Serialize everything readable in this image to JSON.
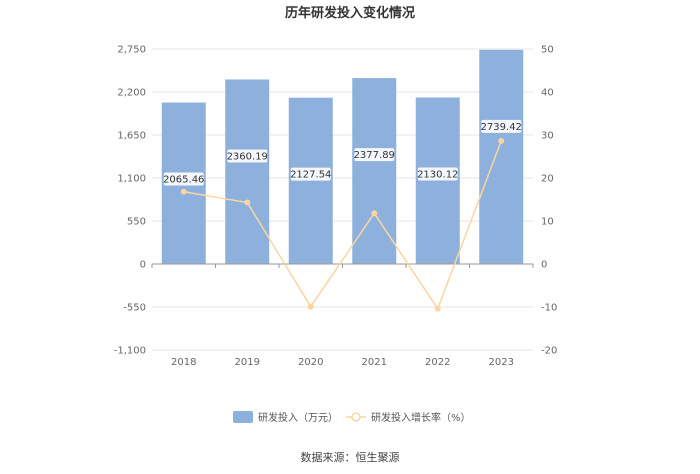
{
  "chart_data": {
    "type": "bar",
    "title": "历年研发投入变化情况",
    "categories": [
      "2018",
      "2019",
      "2020",
      "2021",
      "2022",
      "2023"
    ],
    "series": [
      {
        "name": "研发投入（万元）",
        "type": "bar",
        "axis": "left",
        "values": [
          2065.46,
          2360.19,
          2127.54,
          2377.89,
          2130.12,
          2739.42
        ],
        "labels": [
          "2065.46",
          "2360.19",
          "2127.54",
          "2377.89",
          "2130.12",
          "2739.42"
        ],
        "color": "#8eb0dd"
      },
      {
        "name": "研发投入增长率（%）",
        "type": "line",
        "axis": "right",
        "values": [
          16.8,
          14.3,
          -9.9,
          11.8,
          -10.4,
          28.6
        ],
        "color": "#f9d6a0"
      }
    ],
    "y_left": {
      "ylim": [
        -1100,
        2750
      ],
      "ticks": [
        "2,750",
        "2,200",
        "1,650",
        "1,100",
        "550",
        "0",
        "-550",
        "-1,100"
      ],
      "tick_values": [
        2750,
        2200,
        1650,
        1100,
        550,
        0,
        -550,
        -1100
      ]
    },
    "y_right": {
      "ylim": [
        -20,
        50
      ],
      "ticks": [
        "50",
        "40",
        "30",
        "20",
        "10",
        "0",
        "-10",
        "-20"
      ],
      "tick_values": [
        50,
        40,
        30,
        20,
        10,
        0,
        -10,
        -20
      ]
    },
    "legend_position": "bottom-center",
    "grid": true
  },
  "footer": {
    "source": "数据来源：恒生聚源"
  }
}
